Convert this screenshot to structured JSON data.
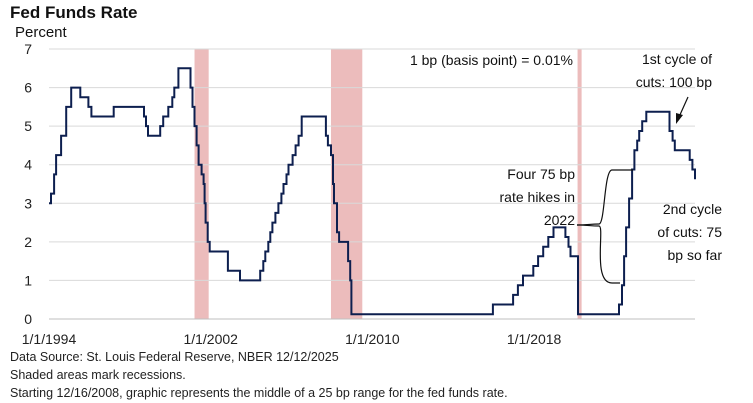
{
  "chart_data": {
    "type": "line",
    "title": "Fed Funds Rate",
    "ylabel": "Percent",
    "xlabel": "",
    "ylim": [
      0,
      7
    ],
    "xlim": [
      1994.0,
      2025.96
    ],
    "yticks": [
      "0",
      "1",
      "2",
      "3",
      "4",
      "5",
      "6",
      "7"
    ],
    "xticks": [
      {
        "label": "1/1/1994",
        "value": 1994.0
      },
      {
        "label": "1/1/2002",
        "value": 2002.0
      },
      {
        "label": "1/1/2010",
        "value": 2010.0
      },
      {
        "label": "1/1/2018",
        "value": 2018.0
      }
    ],
    "grid": true,
    "recessions": [
      {
        "start": 2001.2,
        "end": 2001.9
      },
      {
        "start": 2007.95,
        "end": 2009.5
      },
      {
        "start": 2020.15,
        "end": 2020.35
      }
    ],
    "series": [
      {
        "name": "Fed Funds Rate",
        "color": "#0d1f4f",
        "points": [
          [
            1994.0,
            3.0
          ],
          [
            1994.1,
            3.25
          ],
          [
            1994.25,
            3.75
          ],
          [
            1994.35,
            4.25
          ],
          [
            1994.6,
            4.75
          ],
          [
            1994.85,
            5.5
          ],
          [
            1995.1,
            6.0
          ],
          [
            1995.55,
            5.75
          ],
          [
            1995.95,
            5.5
          ],
          [
            1996.1,
            5.25
          ],
          [
            1997.2,
            5.5
          ],
          [
            1998.7,
            5.25
          ],
          [
            1998.8,
            5.0
          ],
          [
            1998.9,
            4.75
          ],
          [
            1999.5,
            5.0
          ],
          [
            1999.65,
            5.25
          ],
          [
            1999.9,
            5.5
          ],
          [
            2000.1,
            5.75
          ],
          [
            2000.2,
            6.0
          ],
          [
            2000.4,
            6.5
          ],
          [
            2001.0,
            6.0
          ],
          [
            2001.1,
            5.5
          ],
          [
            2001.2,
            5.0
          ],
          [
            2001.3,
            4.5
          ],
          [
            2001.4,
            4.0
          ],
          [
            2001.55,
            3.75
          ],
          [
            2001.65,
            3.5
          ],
          [
            2001.7,
            3.0
          ],
          [
            2001.75,
            2.5
          ],
          [
            2001.85,
            2.0
          ],
          [
            2001.95,
            1.75
          ],
          [
            2002.85,
            1.25
          ],
          [
            2003.45,
            1.0
          ],
          [
            2004.45,
            1.25
          ],
          [
            2004.6,
            1.5
          ],
          [
            2004.7,
            1.75
          ],
          [
            2004.85,
            2.0
          ],
          [
            2004.95,
            2.25
          ],
          [
            2005.05,
            2.5
          ],
          [
            2005.2,
            2.75
          ],
          [
            2005.35,
            3.0
          ],
          [
            2005.5,
            3.25
          ],
          [
            2005.6,
            3.5
          ],
          [
            2005.75,
            3.75
          ],
          [
            2005.85,
            4.0
          ],
          [
            2006.05,
            4.25
          ],
          [
            2006.2,
            4.5
          ],
          [
            2006.35,
            4.75
          ],
          [
            2006.5,
            5.25
          ],
          [
            2007.7,
            4.75
          ],
          [
            2007.8,
            4.5
          ],
          [
            2007.95,
            4.25
          ],
          [
            2008.05,
            3.5
          ],
          [
            2008.1,
            3.0
          ],
          [
            2008.25,
            2.25
          ],
          [
            2008.35,
            2.0
          ],
          [
            2008.8,
            1.5
          ],
          [
            2008.9,
            1.0
          ],
          [
            2008.96,
            0.125
          ],
          [
            2015.96,
            0.375
          ],
          [
            2016.96,
            0.625
          ],
          [
            2017.2,
            0.875
          ],
          [
            2017.45,
            1.125
          ],
          [
            2017.96,
            1.375
          ],
          [
            2018.2,
            1.625
          ],
          [
            2018.45,
            1.875
          ],
          [
            2018.7,
            2.125
          ],
          [
            2018.96,
            2.375
          ],
          [
            2019.55,
            2.125
          ],
          [
            2019.7,
            1.875
          ],
          [
            2019.8,
            1.625
          ],
          [
            2020.17,
            0.125
          ],
          [
            2022.2,
            0.375
          ],
          [
            2022.35,
            0.875
          ],
          [
            2022.45,
            1.625
          ],
          [
            2022.55,
            2.375
          ],
          [
            2022.7,
            3.125
          ],
          [
            2022.85,
            3.875
          ],
          [
            2022.96,
            4.375
          ],
          [
            2023.1,
            4.625
          ],
          [
            2023.2,
            4.875
          ],
          [
            2023.35,
            5.125
          ],
          [
            2023.55,
            5.375
          ],
          [
            2024.7,
            4.875
          ],
          [
            2024.85,
            4.625
          ],
          [
            2024.96,
            4.375
          ],
          [
            2025.7,
            4.125
          ],
          [
            2025.83,
            3.875
          ],
          [
            2025.96,
            3.625
          ]
        ]
      }
    ],
    "annotations": [
      {
        "id": "bp",
        "lines": [
          "1 bp (basis point) = 0.01%"
        ]
      },
      {
        "id": "first-cycle",
        "lines": [
          "1st cycle of",
          "cuts: 100 bp"
        ]
      },
      {
        "id": "hikes",
        "lines": [
          "Four 75 bp",
          "rate hikes in",
          "2022"
        ]
      },
      {
        "id": "second-cycle",
        "lines": [
          "2nd cycle",
          "of cuts: 75",
          "bp so far"
        ]
      }
    ]
  },
  "notes": [
    "Data Source: St. Louis Federal Reserve, NBER 12/12/2025",
    "Shaded areas mark recessions.",
    "Starting 12/16/2008, graphic represents the middle of a 25 bp range for the fed funds rate."
  ]
}
